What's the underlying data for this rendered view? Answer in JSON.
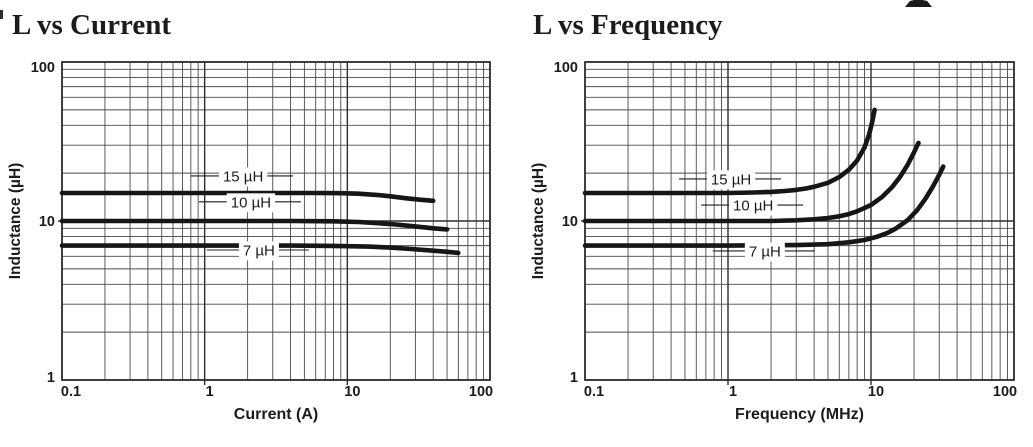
{
  "page": {
    "colors": {
      "ink": "#1c1c1c",
      "grid_minor": "#4a4a4a",
      "grid_major": "#2e2e2e",
      "curve": "#161616",
      "background": "#ffffff"
    }
  },
  "chart_data": [
    {
      "type": "line",
      "title": "L vs Current",
      "xlabel": "Current (A)",
      "ylabel": "Inductance (µH)",
      "xscale": "log",
      "yscale": "log",
      "xlim": [
        0.1,
        100
      ],
      "ylim": [
        1,
        100
      ],
      "grid": "log major + minor, full frame",
      "legend_position": "inline-curve-labels",
      "x_ticks": [
        0.1,
        1,
        10,
        100
      ],
      "x_tick_labels": [
        "0.1",
        "1",
        "10",
        "100"
      ],
      "y_ticks": [
        1,
        10,
        100
      ],
      "y_tick_labels": [
        "1",
        "10",
        "100"
      ],
      "series": [
        {
          "name": "15 µH",
          "points": [
            [
              0.1,
              15
            ],
            [
              1,
              15
            ],
            [
              3,
              15
            ],
            [
              6,
              15
            ],
            [
              9,
              14.95
            ],
            [
              12,
              14.85
            ],
            [
              16,
              14.6
            ],
            [
              20,
              14.3
            ],
            [
              26,
              13.9
            ],
            [
              33,
              13.6
            ],
            [
              40,
              13.4
            ]
          ]
        },
        {
          "name": "10 µH",
          "points": [
            [
              0.1,
              10
            ],
            [
              1,
              10
            ],
            [
              4,
              10
            ],
            [
              8,
              9.95
            ],
            [
              12,
              9.85
            ],
            [
              16,
              9.7
            ],
            [
              22,
              9.5
            ],
            [
              30,
              9.25
            ],
            [
              40,
              9.0
            ],
            [
              50,
              8.85
            ]
          ]
        },
        {
          "name": "7 µH",
          "points": [
            [
              0.1,
              7
            ],
            [
              1,
              7
            ],
            [
              4,
              7
            ],
            [
              8,
              6.97
            ],
            [
              14,
              6.9
            ],
            [
              20,
              6.8
            ],
            [
              28,
              6.67
            ],
            [
              40,
              6.5
            ],
            [
              50,
              6.4
            ],
            [
              60,
              6.3
            ]
          ]
        }
      ],
      "labels": [
        {
          "text": "15 µH",
          "x": 1.86,
          "y": 19.2
        },
        {
          "text": "10 µH",
          "x": 2.11,
          "y": 13.2
        },
        {
          "text": "7 µH",
          "x": 2.4,
          "y": 6.57
        }
      ]
    },
    {
      "type": "line",
      "title": "L vs Frequency",
      "xlabel": "Frequency (MHz)",
      "ylabel": "Inductance (µH)",
      "xscale": "log",
      "yscale": "log",
      "xlim": [
        0.1,
        100
      ],
      "ylim": [
        1,
        100
      ],
      "grid": "log major + minor, full frame",
      "legend_position": "inline-curve-labels",
      "x_ticks": [
        0.1,
        1,
        10,
        100
      ],
      "x_tick_labels": [
        "0.1",
        "1",
        "10",
        "100"
      ],
      "y_ticks": [
        1,
        10,
        100
      ],
      "y_tick_labels": [
        "1",
        "10",
        "100"
      ],
      "series": [
        {
          "name": "15 µH",
          "points": [
            [
              0.1,
              15
            ],
            [
              0.5,
              15
            ],
            [
              1,
              15
            ],
            [
              1.5,
              15.1
            ],
            [
              2,
              15.25
            ],
            [
              2.5,
              15.45
            ],
            [
              3,
              15.7
            ],
            [
              3.5,
              16.0
            ],
            [
              4,
              16.4
            ],
            [
              5,
              17.4
            ],
            [
              6,
              18.9
            ],
            [
              7,
              21
            ],
            [
              8,
              24
            ],
            [
              9,
              29
            ],
            [
              9.7,
              35
            ],
            [
              10.2,
              42
            ],
            [
              10.6,
              50
            ]
          ]
        },
        {
          "name": "10 µH",
          "points": [
            [
              0.1,
              10
            ],
            [
              1,
              10
            ],
            [
              2,
              10
            ],
            [
              3,
              10.1
            ],
            [
              4,
              10.25
            ],
            [
              5,
              10.45
            ],
            [
              6,
              10.7
            ],
            [
              7,
              11.05
            ],
            [
              8,
              11.5
            ],
            [
              10,
              12.6
            ],
            [
              12,
              14.2
            ],
            [
              14,
              16.3
            ],
            [
              16,
              19
            ],
            [
              18,
              22.5
            ],
            [
              20,
              27
            ],
            [
              21.5,
              31
            ]
          ]
        },
        {
          "name": "7 µH",
          "points": [
            [
              0.1,
              7
            ],
            [
              1,
              7
            ],
            [
              3,
              7.05
            ],
            [
              5,
              7.15
            ],
            [
              7,
              7.35
            ],
            [
              9,
              7.6
            ],
            [
              11,
              7.95
            ],
            [
              13,
              8.4
            ],
            [
              15,
              9.0
            ],
            [
              18,
              10.1
            ],
            [
              21,
              11.7
            ],
            [
              24,
              13.8
            ],
            [
              27,
              16.4
            ],
            [
              30,
              19.5
            ],
            [
              32,
              22
            ]
          ]
        }
      ],
      "labels": [
        {
          "text": "15 µH",
          "x": 1.05,
          "y": 18.4
        },
        {
          "text": "10 µH",
          "x": 1.5,
          "y": 12.6
        },
        {
          "text": "7 µH",
          "x": 1.81,
          "y": 6.48
        }
      ]
    }
  ]
}
